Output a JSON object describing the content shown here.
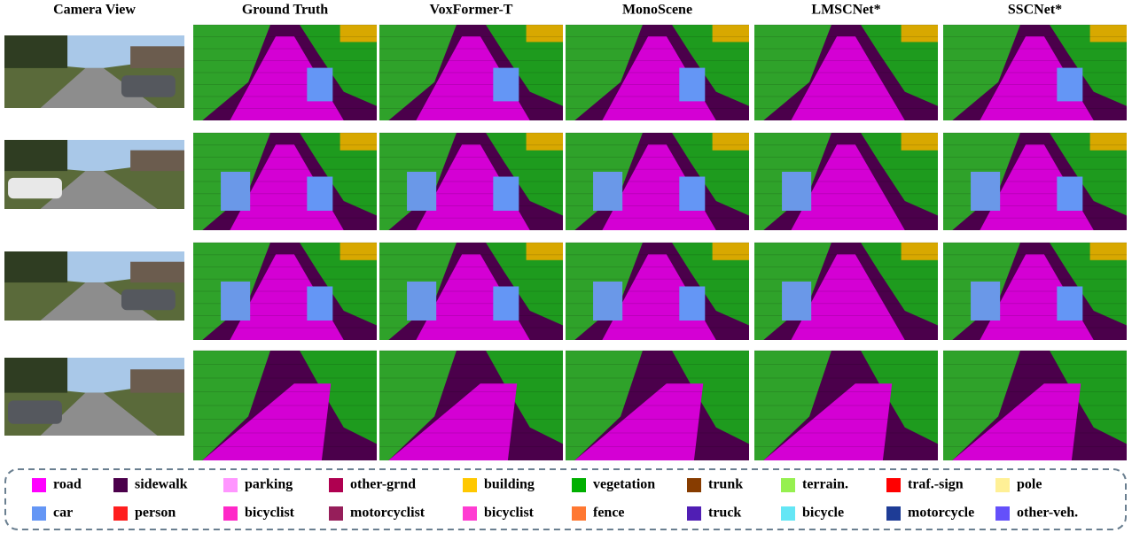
{
  "headers": [
    "Camera View",
    "Ground Truth",
    "VoxFormer-T",
    "MonoScene",
    "LMSCNet*",
    "SSCNet*"
  ],
  "legend": [
    {
      "label": "road",
      "color": "#ff00ff"
    },
    {
      "label": "sidewalk",
      "color": "#4b004b"
    },
    {
      "label": "parking",
      "color": "#ff96ff"
    },
    {
      "label": "other-grnd",
      "color": "#af0050"
    },
    {
      "label": "building",
      "color": "#ffc800"
    },
    {
      "label": "vegetation",
      "color": "#00af00"
    },
    {
      "label": "trunk",
      "color": "#873c00"
    },
    {
      "label": "terrain.",
      "color": "#96f050"
    },
    {
      "label": "traf.-sign",
      "color": "#ff0000"
    },
    {
      "label": "pole",
      "color": "#fff096"
    },
    {
      "label": "car",
      "color": "#6496f5"
    },
    {
      "label": "person",
      "color": "#ff1e1e"
    },
    {
      "label": "bicyclist",
      "color": "#ff28c8"
    },
    {
      "label": "motorcyclist",
      "color": "#961e5a"
    },
    {
      "label": "bicyclist",
      "color": "#ff3cd2"
    },
    {
      "label": "fence",
      "color": "#ff7832"
    },
    {
      "label": "truck",
      "color": "#501eb4"
    },
    {
      "label": "bicycle",
      "color": "#64e6f5"
    },
    {
      "label": "motorcycle",
      "color": "#1e3c96"
    },
    {
      "label": "other-veh.",
      "color": "#6450fa"
    }
  ]
}
